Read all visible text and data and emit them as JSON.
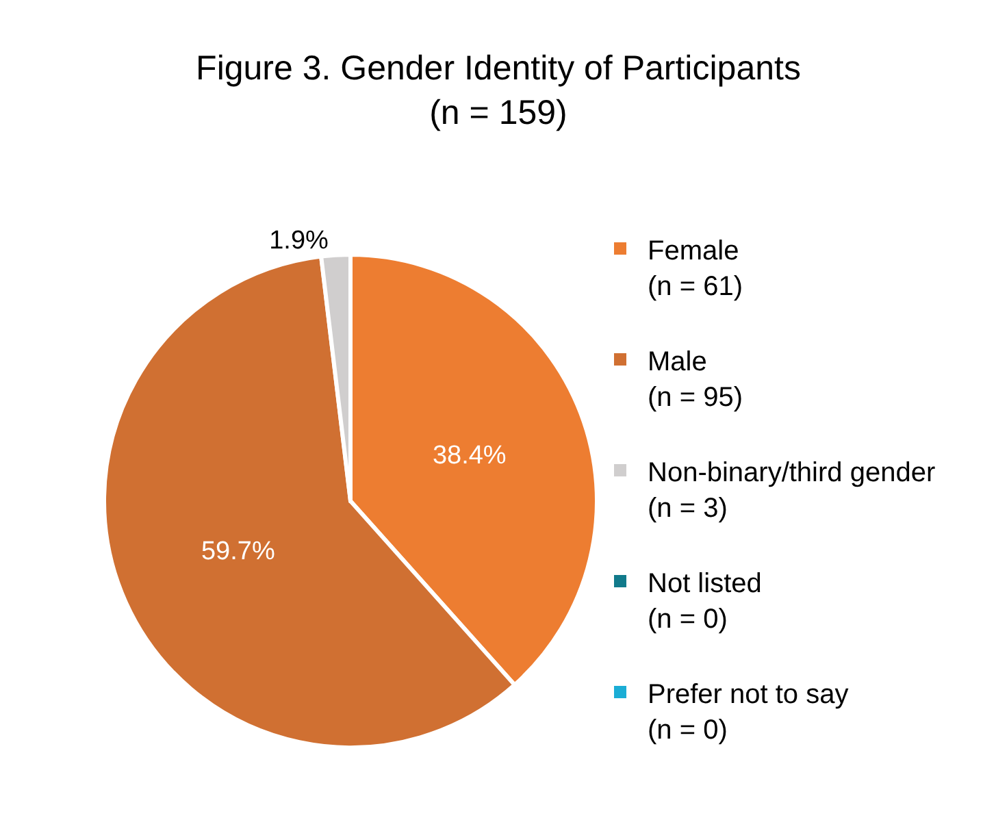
{
  "chart_data": {
    "type": "pie",
    "title": "Figure 3. Gender Identity of Participants\n(n = 159)",
    "categories": [
      "Female\n(n = 61)",
      "Male\n(n = 95)",
      "Non-binary/third gender\n(n = 3)",
      "Not listed\n(n = 0)",
      "Prefer not to say\n(n = 0)"
    ],
    "values": [
      38.4,
      59.7,
      1.9,
      0,
      0
    ],
    "colors": [
      "#ed7d31",
      "#d07032",
      "#d0cece",
      "#117a8b",
      "#1badd5"
    ],
    "value_labels": [
      "38.4%",
      "59.7%",
      "1.9%",
      null,
      null
    ],
    "legend": "right"
  }
}
